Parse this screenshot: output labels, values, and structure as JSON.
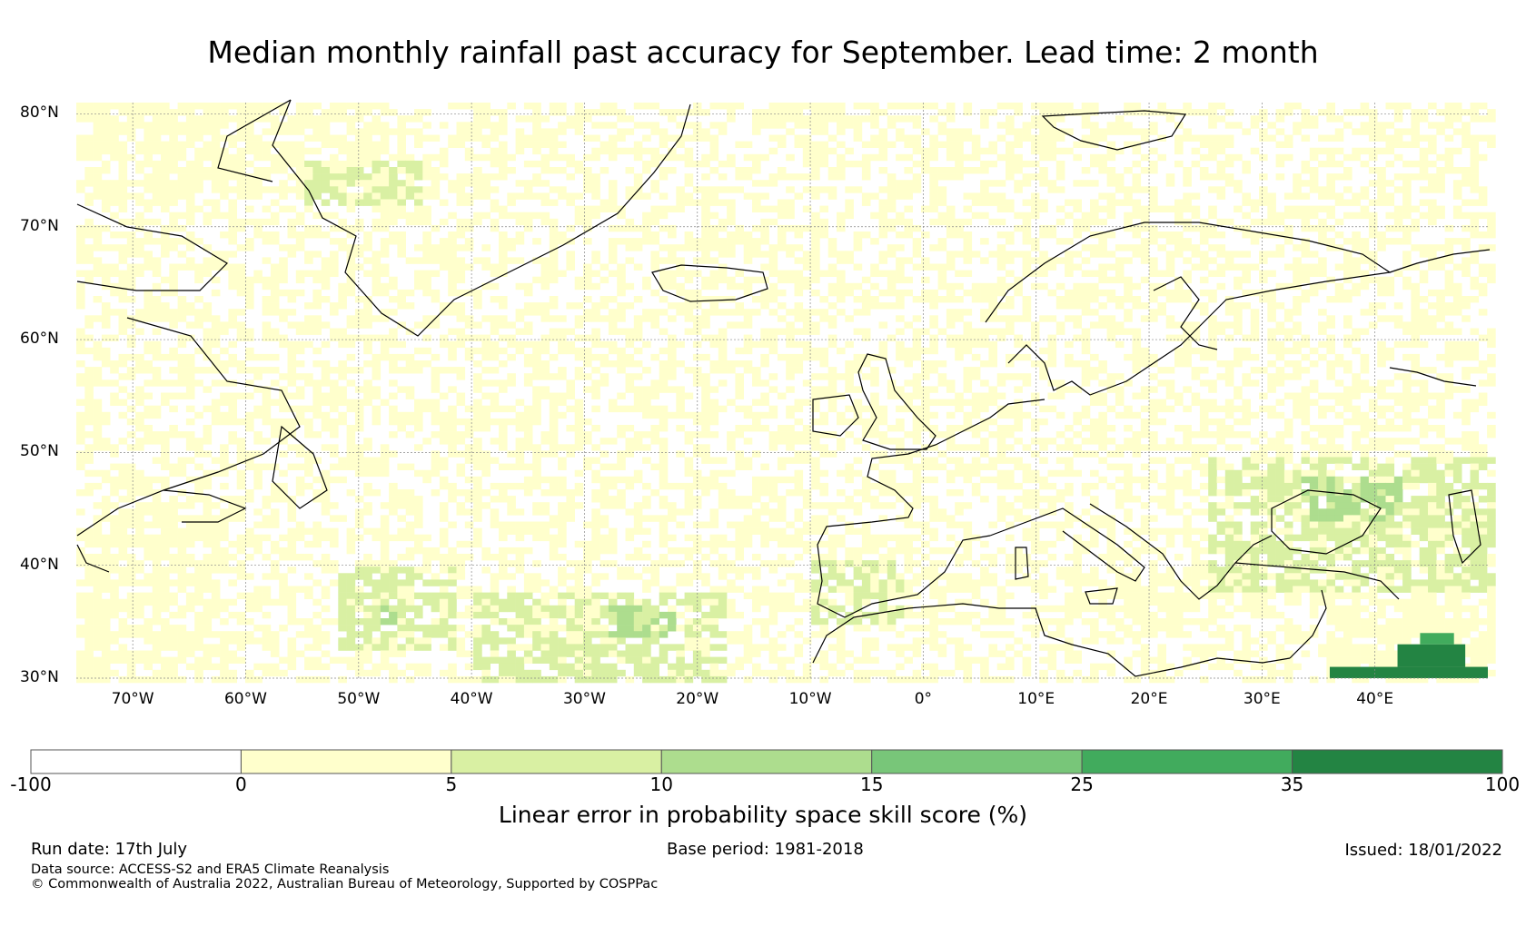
{
  "title": "Median monthly rainfall past accuracy for September. Lead time: 2 month",
  "map": {
    "region": "North Atlantic and Europe",
    "lon_range": [
      -75,
      50
    ],
    "lat_range": [
      30,
      81
    ],
    "lat_labels": [
      {
        "lat": 80,
        "text": "80°N"
      },
      {
        "lat": 70,
        "text": "70°N"
      },
      {
        "lat": 60,
        "text": "60°N"
      },
      {
        "lat": 50,
        "text": "50°N"
      },
      {
        "lat": 40,
        "text": "40°N"
      },
      {
        "lat": 30,
        "text": "30°N"
      }
    ],
    "lon_labels": [
      {
        "lon": -70,
        "text": "70°W"
      },
      {
        "lon": -60,
        "text": "60°W"
      },
      {
        "lon": -50,
        "text": "50°W"
      },
      {
        "lon": -40,
        "text": "40°W"
      },
      {
        "lon": -30,
        "text": "30°W"
      },
      {
        "lon": -20,
        "text": "20°W"
      },
      {
        "lon": -10,
        "text": "10°W"
      },
      {
        "lon": 0,
        "text": "0°"
      },
      {
        "lon": 10,
        "text": "10°E"
      },
      {
        "lon": 20,
        "text": "20°E"
      },
      {
        "lon": 30,
        "text": "30°E"
      },
      {
        "lon": 40,
        "text": "40°E"
      }
    ],
    "skill_patches": [
      {
        "lon": [
          -75,
          -48
        ],
        "lat": [
          73,
          81
        ],
        "level": 1
      },
      {
        "lon": [
          -55,
          -45
        ],
        "lat": [
          72,
          76
        ],
        "level": 2
      },
      {
        "lon": [
          -75,
          -62
        ],
        "lat": [
          30,
          46
        ],
        "level": 1
      },
      {
        "lon": [
          -52,
          -42
        ],
        "lat": [
          33,
          40
        ],
        "level": 2
      },
      {
        "lon": [
          -49,
          -46
        ],
        "lat": [
          35,
          37
        ],
        "level": 3
      },
      {
        "lon": [
          -40,
          -18
        ],
        "lat": [
          30,
          38
        ],
        "level": 2
      },
      {
        "lon": [
          -28,
          -22
        ],
        "lat": [
          34,
          37
        ],
        "level": 3
      },
      {
        "lon": [
          -10,
          -2
        ],
        "lat": [
          35,
          41
        ],
        "level": 2
      },
      {
        "lon": [
          12,
          30
        ],
        "lat": [
          35,
          40
        ],
        "level": 1
      },
      {
        "lon": [
          25,
          50
        ],
        "lat": [
          38,
          50
        ],
        "level": 2
      },
      {
        "lon": [
          33,
          42
        ],
        "lat": [
          44,
          48
        ],
        "level": 3
      },
      {
        "lon": [
          35,
          50
        ],
        "lat": [
          30,
          38
        ],
        "level": 1
      }
    ],
    "dark_patches": [
      {
        "lon": [
          36,
          50
        ],
        "lat": [
          30,
          31
        ],
        "level": 6
      },
      {
        "lon": [
          42,
          48
        ],
        "lat": [
          31,
          33
        ],
        "level": 6
      },
      {
        "lon": [
          44,
          47
        ],
        "lat": [
          33,
          34
        ],
        "level": 5
      }
    ]
  },
  "colorbar": {
    "colors": [
      "#ffffff",
      "#ffffcc",
      "#d9f0a3",
      "#addd8e",
      "#78c679",
      "#41ab5d",
      "#238443"
    ],
    "ticks": [
      "-100",
      "0",
      "5",
      "10",
      "15",
      "25",
      "35",
      "100"
    ],
    "label": "Linear error in probability space skill score (%)"
  },
  "footer": {
    "run_date": "Run date: 17th July",
    "base_period": "Base period: 1981-2018",
    "issued": "Issued: 18/01/2022",
    "data_source": "Data source: ACCESS-S2 and ERA5 Climate Reanalysis",
    "copyright": "© Commonwealth of Australia 2022, Australian Bureau of Meteorology, Supported by COSPPac"
  }
}
